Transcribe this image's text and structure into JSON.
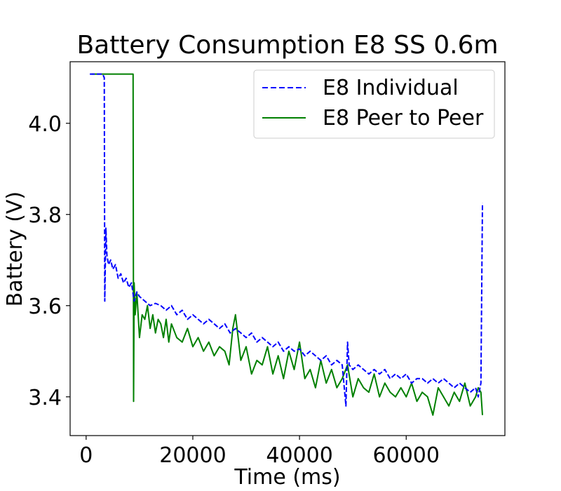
{
  "chart_data": {
    "type": "line",
    "title": "Battery Consumption E8 SS 0.6m",
    "xlabel": "Time (ms)",
    "ylabel": "Battery (V)",
    "xlim": [
      -3000,
      78500
    ],
    "ylim": [
      3.315,
      4.135
    ],
    "xticks": [
      0,
      20000,
      40000,
      60000
    ],
    "xtick_labels": [
      "0",
      "20000",
      "40000",
      "60000"
    ],
    "yticks": [
      3.4,
      3.6,
      3.8,
      4.0
    ],
    "ytick_labels": [
      "3.4",
      "3.6",
      "3.8",
      "4.0"
    ],
    "legend_position": "top-right",
    "series": [
      {
        "name": "E8 Individual",
        "color": "#0000ff",
        "style": "dashed",
        "x": [
          700,
          3100,
          3400,
          3500,
          3700,
          3900,
          4200,
          4600,
          5000,
          5500,
          6000,
          6500,
          7000,
          7500,
          8000,
          8500,
          9000,
          9500,
          10000,
          11000,
          12000,
          13000,
          14000,
          15000,
          16000,
          17000,
          18000,
          19000,
          20000,
          21000,
          22000,
          23000,
          24000,
          25000,
          26000,
          27000,
          28000,
          29000,
          30000,
          31000,
          32000,
          33000,
          34000,
          35000,
          36000,
          37000,
          38000,
          39000,
          40000,
          41000,
          42000,
          43000,
          44000,
          45000,
          46000,
          47000,
          48000,
          48700,
          49000,
          49300,
          50000,
          51000,
          52000,
          53000,
          54000,
          55000,
          56000,
          57000,
          58000,
          59000,
          60000,
          61000,
          62000,
          63000,
          64000,
          65000,
          66000,
          67000,
          68000,
          69000,
          70000,
          71000,
          72000,
          73000,
          73500,
          74000,
          74300
        ],
        "y": [
          4.108,
          4.108,
          4.1,
          3.61,
          3.77,
          3.71,
          3.69,
          3.7,
          3.68,
          3.69,
          3.66,
          3.67,
          3.65,
          3.66,
          3.64,
          3.65,
          3.61,
          3.63,
          3.62,
          3.61,
          3.6,
          3.605,
          3.6,
          3.59,
          3.6,
          3.58,
          3.59,
          3.57,
          3.58,
          3.57,
          3.56,
          3.57,
          3.56,
          3.55,
          3.56,
          3.54,
          3.55,
          3.54,
          3.53,
          3.54,
          3.52,
          3.53,
          3.52,
          3.51,
          3.52,
          3.5,
          3.51,
          3.5,
          3.505,
          3.49,
          3.5,
          3.49,
          3.48,
          3.49,
          3.47,
          3.48,
          3.47,
          3.38,
          3.52,
          3.47,
          3.46,
          3.47,
          3.46,
          3.45,
          3.46,
          3.45,
          3.46,
          3.44,
          3.45,
          3.44,
          3.45,
          3.43,
          3.44,
          3.44,
          3.43,
          3.44,
          3.43,
          3.44,
          3.43,
          3.42,
          3.43,
          3.42,
          3.41,
          3.42,
          3.4,
          3.43,
          3.825
        ]
      },
      {
        "name": "E8 Peer to Peer",
        "color": "#008000",
        "style": "solid",
        "x": [
          1000,
          3000,
          5000,
          7000,
          8800,
          8900,
          9000,
          9200,
          9500,
          10000,
          10500,
          11000,
          11500,
          12000,
          12500,
          13000,
          13500,
          14000,
          14500,
          15000,
          15500,
          16000,
          17000,
          18000,
          19000,
          20000,
          21000,
          22000,
          23000,
          24000,
          25000,
          26000,
          26800,
          27500,
          28000,
          29000,
          30000,
          31000,
          32000,
          33000,
          34000,
          35000,
          36000,
          37000,
          38000,
          39000,
          40000,
          41000,
          42000,
          43000,
          44000,
          45000,
          46000,
          47000,
          48000,
          49000,
          50000,
          51000,
          52000,
          53000,
          54000,
          55000,
          56000,
          57000,
          58000,
          59000,
          60000,
          61000,
          62000,
          63000,
          64000,
          65000,
          66000,
          67000,
          68000,
          69000,
          70000,
          71000,
          72000,
          73000,
          73500,
          74000,
          74300
        ],
        "y": [
          4.108,
          4.108,
          4.108,
          4.108,
          4.108,
          3.39,
          3.65,
          3.58,
          3.63,
          3.53,
          3.58,
          3.57,
          3.6,
          3.55,
          3.58,
          3.54,
          3.57,
          3.56,
          3.53,
          3.57,
          3.52,
          3.56,
          3.53,
          3.52,
          3.55,
          3.51,
          3.53,
          3.5,
          3.52,
          3.49,
          3.51,
          3.5,
          3.47,
          3.55,
          3.58,
          3.48,
          3.51,
          3.45,
          3.48,
          3.47,
          3.51,
          3.45,
          3.49,
          3.44,
          3.5,
          3.46,
          3.52,
          3.44,
          3.46,
          3.42,
          3.48,
          3.43,
          3.46,
          3.42,
          3.44,
          3.47,
          3.4,
          3.44,
          3.42,
          3.41,
          3.45,
          3.4,
          3.43,
          3.41,
          3.4,
          3.42,
          3.4,
          3.43,
          3.39,
          3.41,
          3.4,
          3.36,
          3.42,
          3.4,
          3.38,
          3.41,
          3.39,
          3.43,
          3.38,
          3.4,
          3.42,
          3.41,
          3.36
        ]
      }
    ]
  }
}
